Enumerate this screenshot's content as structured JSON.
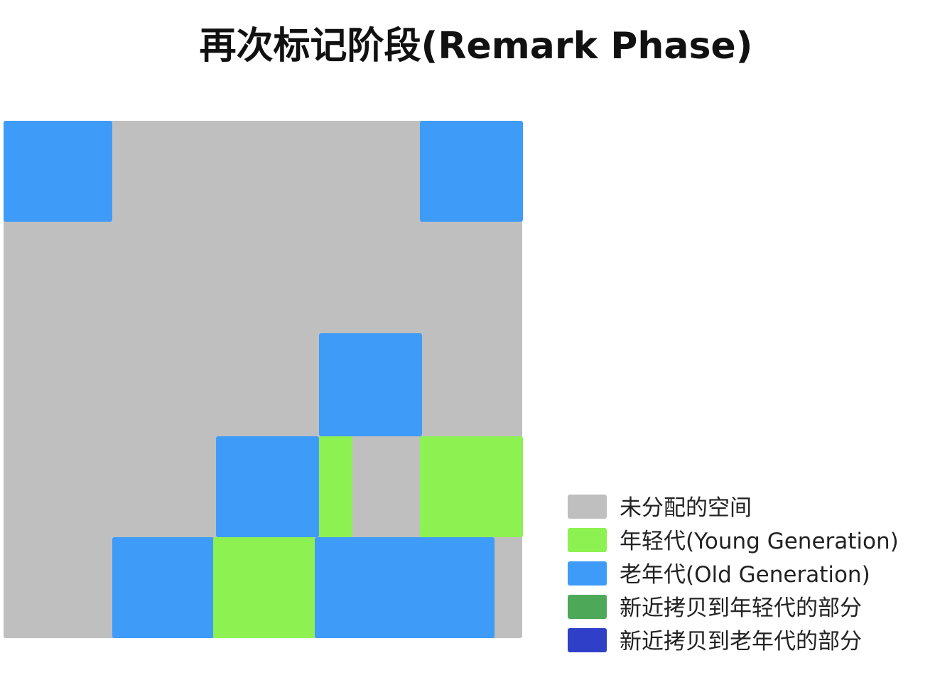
{
  "title": "再次标记阶段(Remark Phase)",
  "colors": {
    "unallocated": "#bfbfbf",
    "young": "#8ef152",
    "old": "#3e9bf7",
    "copied_young": "#4da857",
    "copied_old": "#2f3fc8"
  },
  "legend": [
    {
      "key": "unallocated",
      "label": "未分配的空间"
    },
    {
      "key": "young",
      "label": "年轻代(Young Generation)"
    },
    {
      "key": "old",
      "label": "老年代(Old Generation)"
    },
    {
      "key": "copied_young",
      "label": "新近拷贝到年轻代的部分"
    },
    {
      "key": "copied_old",
      "label": "新近拷贝到老年代的部分"
    }
  ],
  "heap_regions": [
    {
      "id": "old-r0-c0",
      "type": "old"
    },
    {
      "id": "old-r0-c4",
      "type": "old"
    },
    {
      "id": "old-r2-c3",
      "type": "old"
    },
    {
      "id": "old-r3-c2",
      "type": "old"
    },
    {
      "id": "young-r3-c3",
      "type": "young"
    },
    {
      "id": "young-r3-c4",
      "type": "young"
    },
    {
      "id": "old-r4-c1",
      "type": "old"
    },
    {
      "id": "young-r4-c2",
      "type": "young"
    },
    {
      "id": "old-r4-c3",
      "type": "old"
    }
  ]
}
